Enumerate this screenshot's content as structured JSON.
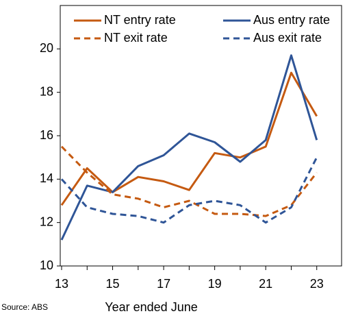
{
  "chart_data": {
    "type": "line",
    "x_label": "Year ended June",
    "source": "Source: ABS",
    "x": [
      13,
      14,
      15,
      16,
      17,
      18,
      19,
      20,
      21,
      22,
      23
    ],
    "xlim": [
      13,
      24
    ],
    "xticks": [
      13,
      15,
      17,
      19,
      21,
      23
    ],
    "ylim": [
      10,
      22
    ],
    "yticks": [
      10,
      12,
      14,
      16,
      18,
      20
    ],
    "legend": "top",
    "series": [
      {
        "name": "NT entry rate",
        "color": "#c55a11",
        "dashed": false,
        "values": [
          12.8,
          14.5,
          13.4,
          14.1,
          13.9,
          13.5,
          15.2,
          15.0,
          15.5,
          18.9,
          16.9
        ]
      },
      {
        "name": "Aus entry rate",
        "color": "#2f5597",
        "dashed": false,
        "values": [
          11.2,
          13.7,
          13.4,
          14.6,
          15.1,
          16.1,
          15.7,
          14.8,
          15.8,
          19.7,
          15.8
        ]
      },
      {
        "name": "NT exit rate",
        "color": "#c55a11",
        "dashed": true,
        "values": [
          15.5,
          14.3,
          13.3,
          13.1,
          12.7,
          13.0,
          12.4,
          12.4,
          12.3,
          12.8,
          14.3
        ]
      },
      {
        "name": "Aus exit rate",
        "color": "#2f5597",
        "dashed": true,
        "values": [
          14.0,
          12.7,
          12.4,
          12.3,
          12.0,
          12.8,
          13.0,
          12.8,
          12.0,
          12.7,
          15.0
        ]
      }
    ]
  }
}
